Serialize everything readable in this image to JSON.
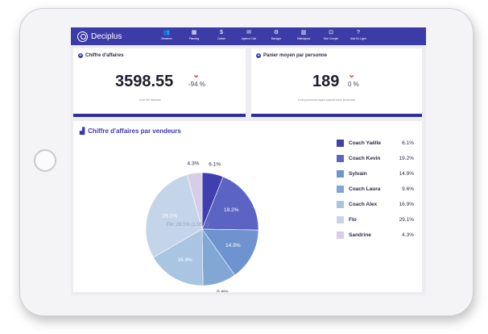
{
  "app": {
    "name": "Deciplus"
  },
  "nav": [
    {
      "label": "Membres",
      "icon": "members-icon",
      "glyph": "👥"
    },
    {
      "label": "Planning",
      "icon": "calendar-icon",
      "glyph": "▦"
    },
    {
      "label": "Caisse",
      "icon": "cash-icon",
      "glyph": "$"
    },
    {
      "label": "Agence Club",
      "icon": "mail-icon",
      "glyph": "✉"
    },
    {
      "label": "Manager",
      "icon": "gear-icon",
      "glyph": "⚙"
    },
    {
      "label": "Statistiques",
      "icon": "stats-icon",
      "glyph": "▥"
    },
    {
      "label": "Mon Compte",
      "icon": "account-icon",
      "glyph": "⊡"
    },
    {
      "label": "Aide En Ligne",
      "icon": "help-icon",
      "glyph": "?"
    }
  ],
  "kpi_revenue": {
    "title": "Chiffre d'affaires",
    "value": "3598.55",
    "change": "-94 %",
    "note": "il est été factures",
    "trend": "down"
  },
  "kpi_basket": {
    "title": "Panier moyen par personne",
    "value": "189",
    "change": "0 %",
    "note": "il est personnes ayant payées dans la période",
    "trend": "down"
  },
  "chart_panel": {
    "title": "Chiffre d'affaires par vendeurs",
    "tooltip": "Flo: 29.1% (1.05…)"
  },
  "colors": {
    "brand": "#3b3ca8",
    "card_bar": "#2e2f9a",
    "down_arrow": "#e23b3b"
  },
  "chart_data": {
    "type": "pie",
    "title": "Chiffre d'affaires par vendeurs",
    "unit": "%",
    "slices": [
      {
        "label": "Coach Yaëlle",
        "value": 6.1,
        "display": "6.1%",
        "color": "#3f3fae"
      },
      {
        "label": "Coach Kevin",
        "value": 19.2,
        "display": "19.2%",
        "color": "#5b64c2"
      },
      {
        "label": "Sylvain",
        "value": 14.9,
        "display": "14.9%",
        "color": "#6f93cf"
      },
      {
        "label": "Coach Laura",
        "value": 9.6,
        "display": "9.6%",
        "color": "#82a7d4"
      },
      {
        "label": "Coach Alex",
        "value": 16.9,
        "display": "16.9%",
        "color": "#a9c5e2"
      },
      {
        "label": "Flo",
        "value": 29.1,
        "display": "29.1%",
        "color": "#c4d5ea"
      },
      {
        "label": "Sandrine",
        "value": 4.3,
        "display": "4.3%",
        "color": "#d7cde8"
      }
    ],
    "legend_position": "right"
  }
}
